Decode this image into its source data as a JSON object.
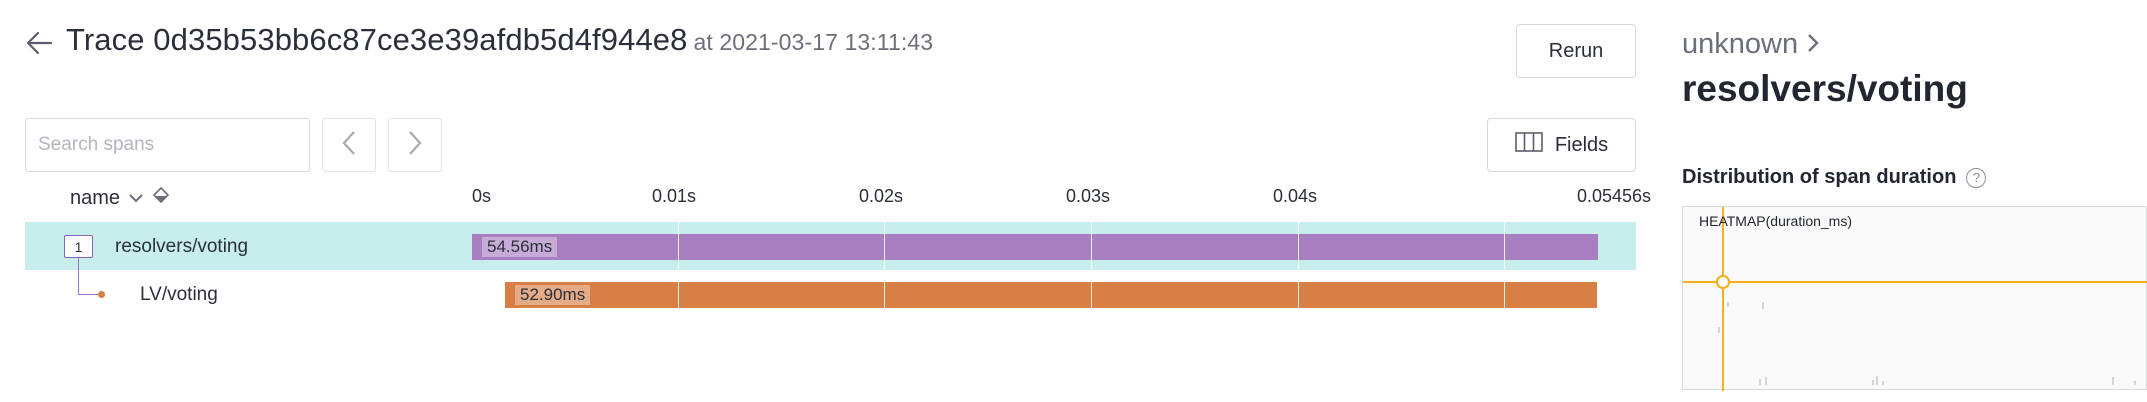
{
  "header": {
    "title": "Trace 0d35b53bb6c87ce3e39afdb5d4f944e8",
    "timestamp": "at 2021-03-17 13:11:43",
    "rerun_label": "Rerun",
    "fields_label": "Fields"
  },
  "search": {
    "placeholder": "Search spans",
    "value": ""
  },
  "table": {
    "name_header": "name",
    "ticks": [
      "0s",
      "0.01s",
      "0.02s",
      "0.03s",
      "0.04s",
      "0.05456s"
    ],
    "total_duration_s": 0.05456,
    "rows": [
      {
        "count": "1",
        "name": "resolvers/voting",
        "duration_label": "54.56ms",
        "start_ms": 0.0,
        "duration_ms": 54.56,
        "color": "#a97fc2",
        "selected": true
      },
      {
        "name": "LV/voting",
        "duration_label": "52.90ms",
        "start_ms": 1.6,
        "duration_ms": 52.9,
        "color": "#d87f45",
        "selected": false
      }
    ]
  },
  "panel": {
    "service": "unknown",
    "span_name": "resolvers/voting",
    "distribution_title": "Distribution of span duration",
    "help_glyph": "?",
    "heatmap_label": "HEATMAP(duration_ms)",
    "crosshair_color": "#f2b01e"
  }
}
